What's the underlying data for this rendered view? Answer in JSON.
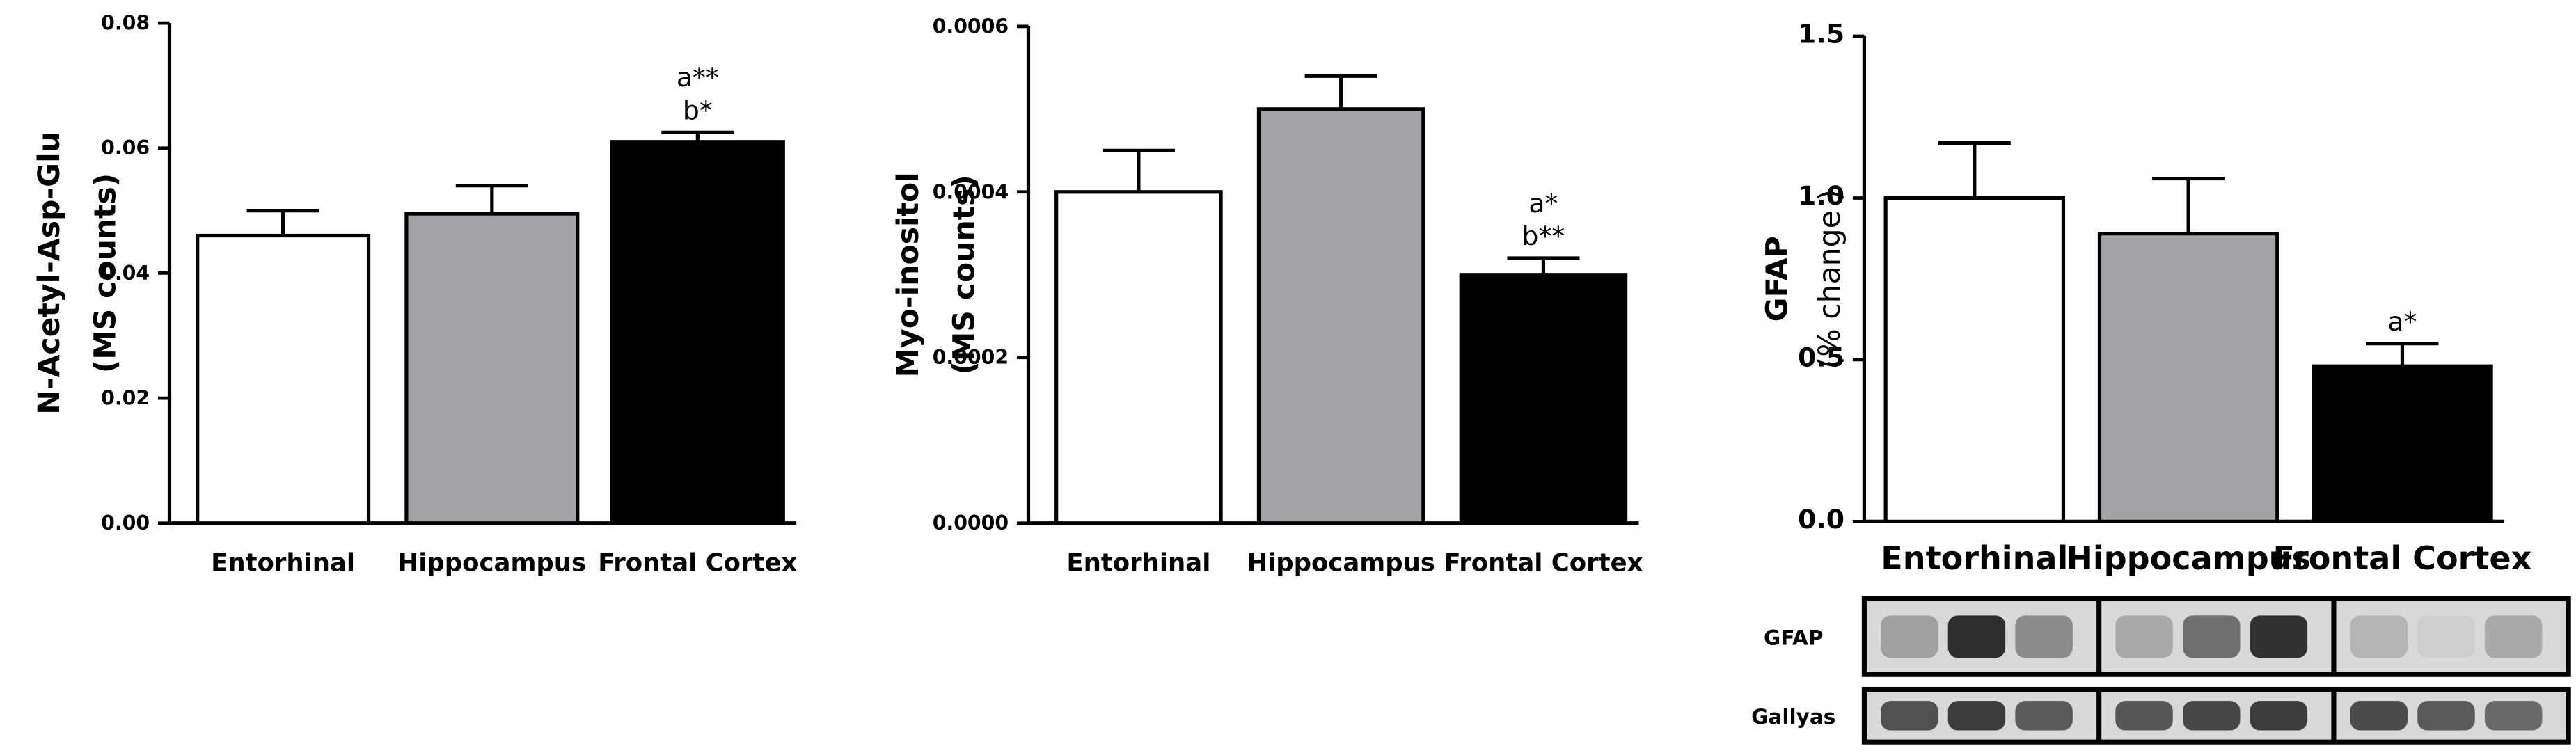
{
  "chart_data": [
    {
      "type": "bar",
      "ylabel_lines": [
        "N-Acetyl-Asp-Glu",
        "(MS counts)"
      ],
      "categories": [
        "Entorhinal",
        "Hippocampus",
        "Frontal Cortex"
      ],
      "values": [
        0.046,
        0.0495,
        0.061
      ],
      "error": [
        0.004,
        0.0045,
        0.0015
      ],
      "bar_colors": [
        "#ffffff",
        "#a3a3a7",
        "#000000"
      ],
      "ylim": [
        0,
        0.08
      ],
      "yticks": [
        "0.00",
        "0.02",
        "0.04",
        "0.06",
        "0.08"
      ],
      "annotations": [
        {
          "category": "Frontal Cortex",
          "lines": [
            "a**",
            "b*"
          ]
        }
      ]
    },
    {
      "type": "bar",
      "ylabel_lines": [
        "Myo-inositol",
        "(MS counts)"
      ],
      "categories": [
        "Entorhinal",
        "Hippocampus",
        "Frontal Cortex"
      ],
      "values": [
        0.0004,
        0.0005,
        0.0003
      ],
      "error": [
        5e-05,
        4e-05,
        2e-05
      ],
      "bar_colors": [
        "#ffffff",
        "#a3a3a7",
        "#000000"
      ],
      "ylim": [
        0,
        0.0006
      ],
      "yticks": [
        "0.0000",
        "0.0002",
        "0.0004",
        "0.0006"
      ],
      "annotations": [
        {
          "category": "Frontal Cortex",
          "lines": [
            "a*",
            "b**"
          ]
        }
      ]
    },
    {
      "type": "bar",
      "ylabel_lines": [
        "GFAP",
        "(% change )"
      ],
      "categories": [
        "Entorhinal",
        "Hippocampus",
        "Frontal Cortex"
      ],
      "values": [
        1.0,
        0.89,
        0.48
      ],
      "error": [
        0.17,
        0.17,
        0.07
      ],
      "bar_colors": [
        "#ffffff",
        "#a3a3a7",
        "#000000"
      ],
      "ylim": [
        0,
        1.5
      ],
      "yticks": [
        "0.0",
        "0.5",
        "1.0",
        "1.5"
      ],
      "annotations": [
        {
          "category": "Frontal Cortex",
          "lines": [
            "a*"
          ]
        }
      ]
    }
  ],
  "blots": {
    "rows": [
      {
        "label": "GFAP",
        "lanes": [
          0.35,
          0.92,
          0.45,
          0.3,
          0.6,
          0.9,
          0.25,
          0.12,
          0.3
        ]
      },
      {
        "label": "Gallyas",
        "lanes": [
          0.75,
          0.85,
          0.7,
          0.72,
          0.8,
          0.85,
          0.78,
          0.7,
          0.62
        ]
      }
    ]
  }
}
